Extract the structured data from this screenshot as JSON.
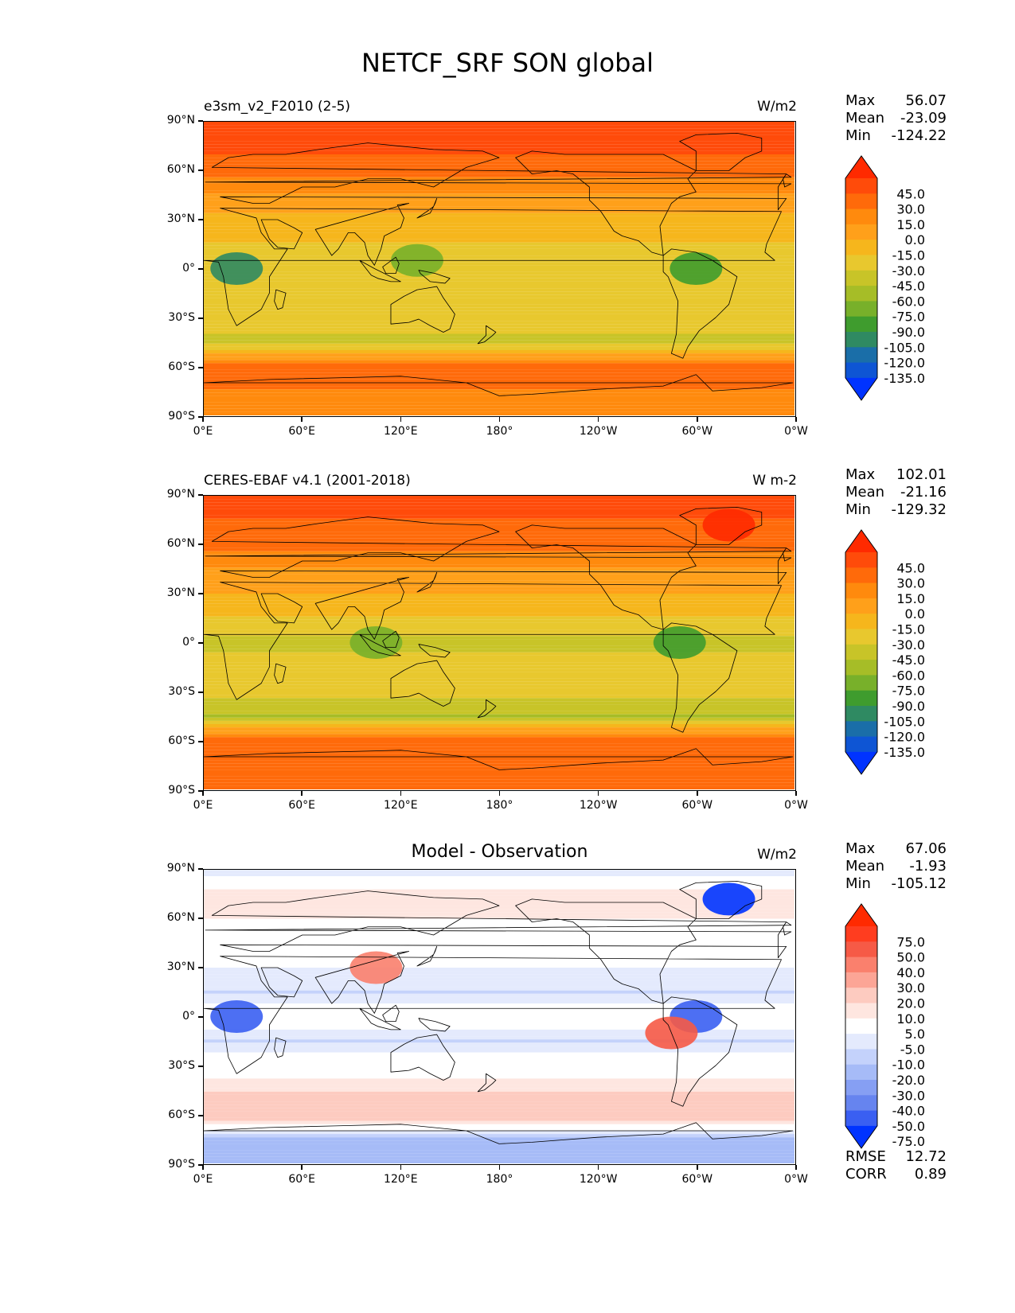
{
  "title": "NETCF_SRF SON global",
  "lat_ticks": [
    "90°N",
    "60°N",
    "30°N",
    "0°",
    "30°S",
    "60°S",
    "90°S"
  ],
  "lon_ticks": [
    "0°E",
    "60°E",
    "120°E",
    "180°",
    "120°W",
    "60°W",
    "0°W"
  ],
  "panels": [
    {
      "left_title": "e3sm_v2_F2010 (2-5)",
      "center_title": "",
      "units": "W/m2",
      "stats": {
        "max_label": "Max",
        "max": "56.07",
        "mean_label": "Mean",
        "mean": "-23.09",
        "min_label": "Min",
        "min": "-124.22"
      },
      "levels": [
        "45.0",
        "30.0",
        "15.0",
        "0.0",
        "-15.0",
        "-30.0",
        "-45.0",
        "-60.0",
        "-75.0",
        "-90.0",
        "-105.0",
        "-120.0",
        "-135.0"
      ],
      "colors": [
        "#ff2a00",
        "#ff4b0a",
        "#ff6a0a",
        "#ff8a0d",
        "#ffa01a",
        "#f6b61c",
        "#e8c82e",
        "#c8c428",
        "#a6bd27",
        "#78b02a",
        "#3f9c2e",
        "#2f8a62",
        "#1a6ea8",
        "#0e55d4",
        "#0033ff"
      ]
    },
    {
      "left_title": "CERES-EBAF v4.1 (2001-2018)",
      "center_title": "",
      "units": "W m-2",
      "stats": {
        "max_label": "Max",
        "max": "102.01",
        "mean_label": "Mean",
        "mean": "-21.16",
        "min_label": "Min",
        "min": "-129.32"
      },
      "levels": [
        "45.0",
        "30.0",
        "15.0",
        "0.0",
        "-15.0",
        "-30.0",
        "-45.0",
        "-60.0",
        "-75.0",
        "-90.0",
        "-105.0",
        "-120.0",
        "-135.0"
      ],
      "colors": [
        "#ff2a00",
        "#ff4b0a",
        "#ff6a0a",
        "#ff8a0d",
        "#ffa01a",
        "#f6b61c",
        "#e8c82e",
        "#c8c428",
        "#a6bd27",
        "#78b02a",
        "#3f9c2e",
        "#2f8a62",
        "#1a6ea8",
        "#0e55d4",
        "#0033ff"
      ]
    },
    {
      "left_title": "",
      "center_title": "Model - Observation",
      "units": "W/m2",
      "stats": {
        "max_label": "Max",
        "max": "67.06",
        "mean_label": "Mean",
        "mean": "-1.93",
        "min_label": "Min",
        "min": "-105.12"
      },
      "levels": [
        "75.0",
        "50.0",
        "40.0",
        "30.0",
        "20.0",
        "10.0",
        "5.0",
        "-5.0",
        "-10.0",
        "-20.0",
        "-30.0",
        "-40.0",
        "-50.0",
        "-75.0"
      ],
      "colors": [
        "#ff2a00",
        "#ff3d1f",
        "#f65a46",
        "#fa806d",
        "#fca596",
        "#fdcbc0",
        "#fee6e0",
        "#ffffff",
        "#e4eafd",
        "#c4d2fb",
        "#a6bbf7",
        "#869ff3",
        "#6684ef",
        "#3a5ff2",
        "#0033ff"
      ],
      "extra": {
        "rmse_label": "RMSE",
        "rmse": "12.72",
        "corr_label": "CORR",
        "corr": "0.89"
      }
    }
  ],
  "chart_data": [
    {
      "type": "heatmap",
      "title": "e3sm_v2_F2010 (2-5)",
      "units": "W/m2",
      "xlim": [
        0,
        360
      ],
      "ylim": [
        -90,
        90
      ],
      "zonal_profile": {
        "lat": [
          90,
          75,
          60,
          45,
          30,
          15,
          0,
          -15,
          -30,
          -45,
          -60,
          -75,
          -90
        ],
        "value": [
          45,
          35,
          20,
          0,
          -20,
          -30,
          -45,
          -35,
          -35,
          -50,
          20,
          15,
          15
        ]
      },
      "features": [
        {
          "lon": 300,
          "lat": 0,
          "value": -90
        },
        {
          "lon": 130,
          "lat": 5,
          "value": -75
        },
        {
          "lon": 20,
          "lat": 0,
          "value": -105
        }
      ],
      "stats": {
        "max": 56.07,
        "mean": -23.09,
        "min": -124.22
      },
      "levels": [
        45,
        30,
        15,
        0,
        -15,
        -30,
        -45,
        -60,
        -75,
        -90,
        -105,
        -120,
        -135
      ]
    },
    {
      "type": "heatmap",
      "title": "CERES-EBAF v4.1 (2001-2018)",
      "units": "W m-2",
      "xlim": [
        0,
        360
      ],
      "ylim": [
        -90,
        90
      ],
      "zonal_profile": {
        "lat": [
          90,
          75,
          60,
          45,
          30,
          15,
          0,
          -15,
          -30,
          -45,
          -60,
          -75,
          -90
        ],
        "value": [
          45,
          30,
          20,
          0,
          -15,
          -30,
          -50,
          -35,
          -40,
          -60,
          25,
          30,
          30
        ]
      },
      "features": [
        {
          "lon": 105,
          "lat": 0,
          "value": -75
        },
        {
          "lon": 290,
          "lat": 0,
          "value": -90
        },
        {
          "lon": 320,
          "lat": 72,
          "value": 50
        }
      ],
      "stats": {
        "max": 102.01,
        "mean": -21.16,
        "min": -129.32
      },
      "levels": [
        45,
        30,
        15,
        0,
        -15,
        -30,
        -45,
        -60,
        -75,
        -90,
        -105,
        -120,
        -135
      ]
    },
    {
      "type": "heatmap",
      "title": "Model - Observation",
      "units": "W/m2",
      "xlim": [
        0,
        360
      ],
      "ylim": [
        -90,
        90
      ],
      "zonal_profile": {
        "lat": [
          90,
          75,
          60,
          45,
          30,
          15,
          0,
          -15,
          -30,
          -45,
          -60,
          -75,
          -90
        ],
        "value": [
          -10,
          10,
          5,
          5,
          -5,
          -10,
          0,
          -10,
          0,
          10,
          20,
          -20,
          -20
        ]
      },
      "features": [
        {
          "lon": 20,
          "lat": 0,
          "value": -50
        },
        {
          "lon": 300,
          "lat": 0,
          "value": -50
        },
        {
          "lon": 320,
          "lat": 72,
          "value": -75
        },
        {
          "lon": 285,
          "lat": -10,
          "value": 50
        },
        {
          "lon": 105,
          "lat": 30,
          "value": 40
        }
      ],
      "stats": {
        "max": 67.06,
        "mean": -1.93,
        "min": -105.12,
        "rmse": 12.72,
        "corr": 0.89
      },
      "levels": [
        75,
        50,
        40,
        30,
        20,
        10,
        5,
        -5,
        -10,
        -20,
        -30,
        -40,
        -50,
        -75
      ]
    }
  ]
}
